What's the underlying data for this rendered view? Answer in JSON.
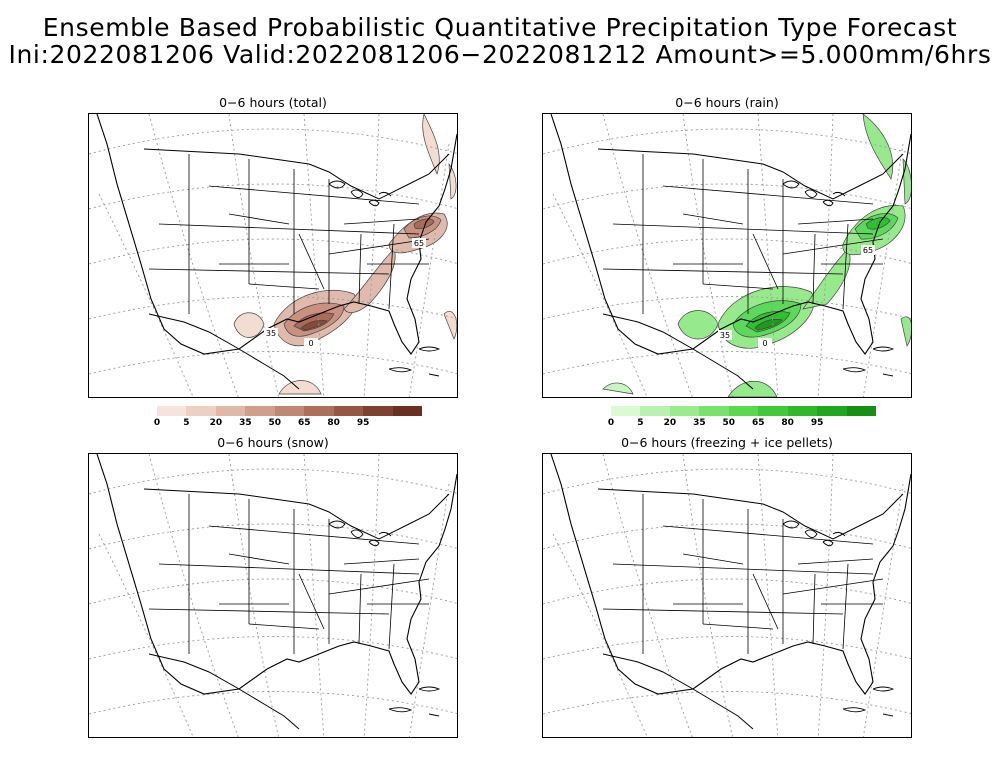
{
  "title": {
    "line1": "Ensemble Based Probabilistic Quantitative Precipitation Type Forecast",
    "line2": "Ini:2022081206 Valid:2022081206−2022081212 Amount>=5.000mm/6hrs"
  },
  "panels": [
    {
      "title": "0−6 hours (total)",
      "fill_colors": [
        "#f3dcd2",
        "#e0bbad",
        "#c99280",
        "#aa6c58",
        "#8a4a38",
        "#6a3020"
      ],
      "contour_labels": [
        "0",
        "35",
        "65"
      ],
      "colorbar_labels": [
        "0",
        "5",
        "20",
        "35",
        "50",
        "65",
        "80",
        "95"
      ],
      "colorbar_colors": [
        "#f6e4dc",
        "#ecd0c4",
        "#dfb8a8",
        "#cf9f8c",
        "#c08874",
        "#ad6f5a",
        "#975642",
        "#7e4030",
        "#693022"
      ]
    },
    {
      "title": "0−6 hours (rain)",
      "fill_colors": [
        "#c8f5c0",
        "#96ea8c",
        "#5cd85a",
        "#2fc02f",
        "#1a9e1a",
        "#0e7a0e"
      ],
      "contour_labels": [
        "0",
        "35",
        "65"
      ],
      "colorbar_labels": [
        "0",
        "5",
        "20",
        "35",
        "50",
        "65",
        "80",
        "95"
      ],
      "colorbar_colors": [
        "#d9fad2",
        "#b8f3ae",
        "#98ec8c",
        "#78e36c",
        "#5ad84e",
        "#40c938",
        "#2eb82a",
        "#21a61f",
        "#158f14"
      ]
    },
    {
      "title": "0−6 hours (snow)"
    },
    {
      "title": "0−6 hours (freezing + ice pellets)"
    }
  ]
}
